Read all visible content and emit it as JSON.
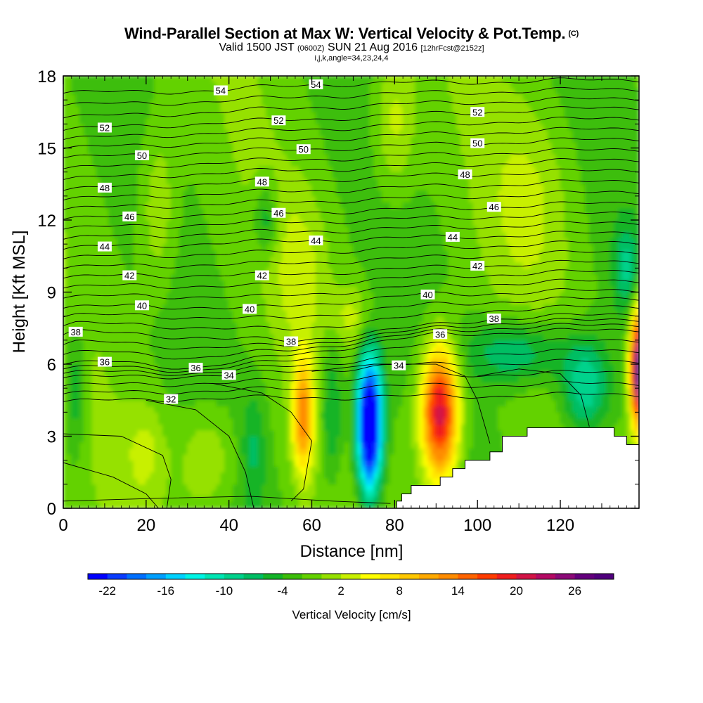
{
  "title": {
    "main": "Wind-Parallel Section at Max W: Vertical Velocity & Pot.Temp.",
    "main_sup": "(C)",
    "valid_prefix": "Valid 1500 JST",
    "valid_utc": "(0600Z)",
    "valid_date": "SUN 21 Aug 2016",
    "forecast": "[12hrFcst@2152z]",
    "indices": "i,j,k,angle=34,23,24,4"
  },
  "chart_data": {
    "type": "heatmap",
    "xlabel": "Distance [nm]",
    "ylabel": "Height [Kft MSL]",
    "xlim": [
      0,
      139
    ],
    "ylim": [
      0,
      18
    ],
    "x_ticks": [
      "0",
      "20",
      "40",
      "60",
      "80",
      "100",
      "120"
    ],
    "y_ticks": [
      "0",
      "3",
      "6",
      "9",
      "12",
      "15",
      "18"
    ],
    "colorbar": {
      "label": "Vertical Velocity [cm/s]",
      "tick_labels": [
        "-22",
        "-16",
        "-10",
        "-4",
        "2",
        "8",
        "14",
        "20",
        "26"
      ],
      "range": [
        -24,
        30
      ],
      "step": 2,
      "colors": [
        "#0000ff",
        "#0a3cff",
        "#0070ff",
        "#00a0ff",
        "#00d2ff",
        "#00f5e6",
        "#00e6b4",
        "#00d28c",
        "#00be64",
        "#14b428",
        "#3cbe0a",
        "#64d200",
        "#96e100",
        "#c8f000",
        "#ffff00",
        "#ffe600",
        "#ffc800",
        "#ffaa00",
        "#ff8c00",
        "#ff6400",
        "#ff3c00",
        "#f01e1e",
        "#d21446",
        "#b40a64",
        "#8c0a78",
        "#64007d",
        "#50007d"
      ]
    },
    "theta_labels": [
      {
        "text": "54",
        "x": 38,
        "y": 17.4
      },
      {
        "text": "54",
        "x": 61,
        "y": 17.65
      },
      {
        "text": "52",
        "x": 10,
        "y": 15.85
      },
      {
        "text": "52",
        "x": 52,
        "y": 16.15
      },
      {
        "text": "52",
        "x": 100,
        "y": 16.5
      },
      {
        "text": "50",
        "x": 19,
        "y": 14.7
      },
      {
        "text": "50",
        "x": 58,
        "y": 14.95
      },
      {
        "text": "50",
        "x": 100,
        "y": 15.2
      },
      {
        "text": "48",
        "x": 10,
        "y": 13.35
      },
      {
        "text": "48",
        "x": 48,
        "y": 13.6
      },
      {
        "text": "48",
        "x": 97,
        "y": 13.9
      },
      {
        "text": "46",
        "x": 16,
        "y": 12.15
      },
      {
        "text": "46",
        "x": 52,
        "y": 12.3
      },
      {
        "text": "46",
        "x": 104,
        "y": 12.55
      },
      {
        "text": "44",
        "x": 10,
        "y": 10.9
      },
      {
        "text": "44",
        "x": 61,
        "y": 11.15
      },
      {
        "text": "44",
        "x": 94,
        "y": 11.3
      },
      {
        "text": "42",
        "x": 16,
        "y": 9.7
      },
      {
        "text": "42",
        "x": 48,
        "y": 9.7
      },
      {
        "text": "42",
        "x": 100,
        "y": 10.1
      },
      {
        "text": "40",
        "x": 19,
        "y": 8.45
      },
      {
        "text": "40",
        "x": 45,
        "y": 8.3
      },
      {
        "text": "40",
        "x": 88,
        "y": 8.9
      },
      {
        "text": "38",
        "x": 3,
        "y": 7.35
      },
      {
        "text": "38",
        "x": 55,
        "y": 6.95
      },
      {
        "text": "38",
        "x": 104,
        "y": 7.9
      },
      {
        "text": "36",
        "x": 10,
        "y": 6.1
      },
      {
        "text": "36",
        "x": 32,
        "y": 5.85
      },
      {
        "text": "36",
        "x": 91,
        "y": 7.25
      },
      {
        "text": "34",
        "x": 40,
        "y": 5.55
      },
      {
        "text": "34",
        "x": 81,
        "y": 5.95
      },
      {
        "text": "32",
        "x": 26,
        "y": 4.55
      }
    ],
    "terrain": [
      [
        80.5,
        0
      ],
      [
        80.5,
        0.3
      ],
      [
        81.7,
        0.3
      ],
      [
        81.7,
        0.6
      ],
      [
        84,
        0.6
      ],
      [
        84,
        0.95
      ],
      [
        91,
        0.95
      ],
      [
        91,
        1.3
      ],
      [
        94,
        1.3
      ],
      [
        94,
        1.65
      ],
      [
        97,
        1.65
      ],
      [
        97,
        2.0
      ],
      [
        103,
        2.0
      ],
      [
        103,
        2.35
      ],
      [
        106,
        2.35
      ],
      [
        106,
        3.0
      ],
      [
        112,
        3.0
      ],
      [
        112,
        3.35
      ],
      [
        133,
        3.35
      ],
      [
        133,
        3.0
      ],
      [
        136,
        3.0
      ],
      [
        136,
        2.65
      ],
      [
        139,
        2.65
      ],
      [
        139,
        0
      ]
    ]
  }
}
